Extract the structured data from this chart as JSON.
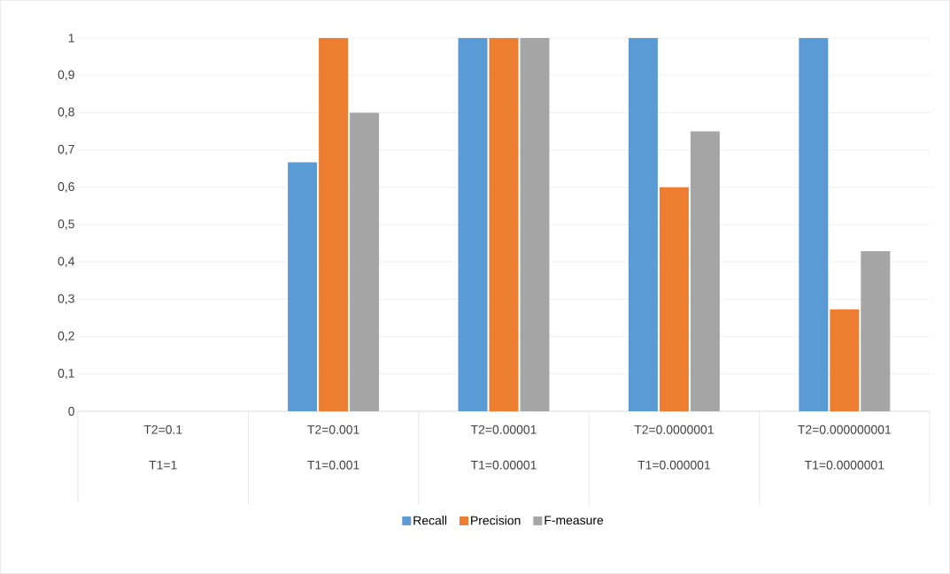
{
  "chart_data": {
    "type": "bar",
    "categories": [
      "T2=0.1 T1=1",
      "T2=0.001 T1=0.001",
      "T2=0.00001 T1=0.00001",
      "T2=0.0000001 T1=0.000001",
      "T2=0.000000001 T1=0.0000001"
    ],
    "series": [
      {
        "name": "Recall",
        "color": "#5b9bd5",
        "values": [
          0,
          0.667,
          1,
          1,
          1
        ]
      },
      {
        "name": "Precision",
        "color": "#ed7d31",
        "values": [
          0,
          1,
          1,
          0.6,
          0.273
        ]
      },
      {
        "name": "F-measure",
        "color": "#a5a5a5",
        "values": [
          0,
          0.8,
          1,
          0.75,
          0.429
        ]
      }
    ],
    "ylim": [
      0,
      1
    ],
    "yticks": [
      0,
      {
        "value": 0.1,
        "label": "0,1"
      },
      {
        "value": 0.2,
        "label": "0,2"
      },
      {
        "value": 0.3,
        "label": "0,3"
      },
      {
        "value": 0.4,
        "label": "0,4"
      },
      {
        "value": 0.5,
        "label": "0,5"
      },
      {
        "value": 0.6,
        "label": "0,6"
      },
      {
        "value": 0.7,
        "label": "0,7"
      },
      {
        "value": 0.8,
        "label": "0,8"
      },
      {
        "value": 0.9,
        "label": "0,9"
      },
      1
    ],
    "grid": "y",
    "legend": "bottom"
  }
}
